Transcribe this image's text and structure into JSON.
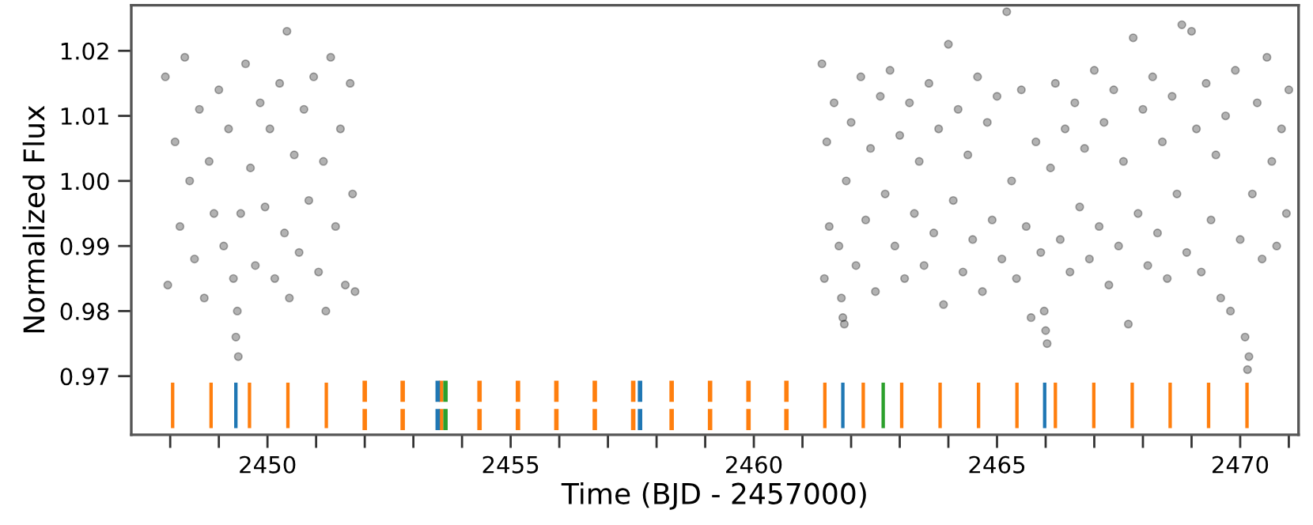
{
  "chart_data": {
    "type": "scatter",
    "xlabel": "Time (BJD - 2457000)",
    "ylabel": "Normalized Flux",
    "xlim": [
      2447.2,
      2471.2
    ],
    "ylim": [
      0.961,
      1.027
    ],
    "xticks": [
      {
        "value": 2448,
        "label": null
      },
      {
        "value": 2449,
        "label": null
      },
      2450,
      {
        "value": 2451,
        "label": null
      },
      {
        "value": 2452,
        "label": null
      },
      {
        "value": 2453,
        "label": null
      },
      {
        "value": 2454,
        "label": null
      },
      2455,
      {
        "value": 2456,
        "label": null
      },
      {
        "value": 2457,
        "label": null
      },
      {
        "value": 2458,
        "label": null
      },
      {
        "value": 2459,
        "label": null
      },
      2460,
      {
        "value": 2461,
        "label": null
      },
      {
        "value": 2462,
        "label": null
      },
      {
        "value": 2463,
        "label": null
      },
      {
        "value": 2464,
        "label": null
      },
      2465,
      {
        "value": 2466,
        "label": null
      },
      {
        "value": 2467,
        "label": null
      },
      {
        "value": 2468,
        "label": null
      },
      {
        "value": 2469,
        "label": null
      },
      2470,
      {
        "value": 2471,
        "label": null
      }
    ],
    "yticks": [
      0.97,
      0.98,
      0.99,
      {
        "value": 1.0,
        "label": "1.00"
      },
      1.01,
      1.02
    ],
    "series": [
      {
        "color": "#000000",
        "marker": "circle",
        "x": [
          2447.9,
          2447.95,
          2448.1,
          2448.2,
          2448.3,
          2448.4,
          2448.5,
          2448.6,
          2448.7,
          2448.8,
          2448.9,
          2449.0,
          2449.1,
          2449.2,
          2449.3,
          2449.35,
          2449.38,
          2449.4,
          2449.45,
          2449.55,
          2449.65,
          2449.75,
          2449.85,
          2449.95,
          2450.05,
          2450.15,
          2450.25,
          2450.35,
          2450.4,
          2450.45,
          2450.55,
          2450.65,
          2450.75,
          2450.85,
          2450.95,
          2451.05,
          2451.15,
          2451.2,
          2451.3,
          2451.4,
          2451.5,
          2451.6,
          2451.7,
          2451.75,
          2451.8,
          2461.4,
          2461.45,
          2461.5,
          2461.55,
          2461.65,
          2461.75,
          2461.8,
          2461.83,
          2461.86,
          2461.9,
          2462.0,
          2462.1,
          2462.2,
          2462.3,
          2462.4,
          2462.5,
          2462.6,
          2462.7,
          2462.8,
          2462.9,
          2463.0,
          2463.1,
          2463.2,
          2463.3,
          2463.4,
          2463.5,
          2463.6,
          2463.7,
          2463.8,
          2463.9,
          2464.0,
          2464.1,
          2464.2,
          2464.3,
          2464.4,
          2464.5,
          2464.6,
          2464.7,
          2464.8,
          2464.9,
          2465.0,
          2465.1,
          2465.2,
          2465.3,
          2465.4,
          2465.5,
          2465.6,
          2465.7,
          2465.8,
          2465.9,
          2465.97,
          2466.0,
          2466.03,
          2466.1,
          2466.2,
          2466.3,
          2466.4,
          2466.5,
          2466.6,
          2466.7,
          2466.8,
          2466.9,
          2467.0,
          2467.1,
          2467.2,
          2467.3,
          2467.4,
          2467.5,
          2467.6,
          2467.7,
          2467.8,
          2467.9,
          2468.0,
          2468.1,
          2468.2,
          2468.3,
          2468.4,
          2468.5,
          2468.6,
          2468.7,
          2468.8,
          2468.9,
          2469.0,
          2469.1,
          2469.2,
          2469.3,
          2469.4,
          2469.5,
          2469.6,
          2469.7,
          2469.8,
          2469.9,
          2470.0,
          2470.1,
          2470.15,
          2470.18,
          2470.25,
          2470.35,
          2470.45,
          2470.55,
          2470.65,
          2470.75,
          2470.85,
          2470.95,
          2471.0
        ],
        "values": [
          1.016,
          0.984,
          1.006,
          0.993,
          1.019,
          1.0,
          0.988,
          1.011,
          0.982,
          1.003,
          0.995,
          1.014,
          0.99,
          1.008,
          0.985,
          0.976,
          0.98,
          0.973,
          0.995,
          1.018,
          1.002,
          0.987,
          1.012,
          0.996,
          1.008,
          0.985,
          1.015,
          0.992,
          1.023,
          0.982,
          1.004,
          0.989,
          1.011,
          0.997,
          1.016,
          0.986,
          1.003,
          0.98,
          1.019,
          0.993,
          1.008,
          0.984,
          1.015,
          0.998,
          0.983,
          1.018,
          0.985,
          1.006,
          0.993,
          1.012,
          0.99,
          0.982,
          0.979,
          0.978,
          1.0,
          1.009,
          0.987,
          1.016,
          0.994,
          1.005,
          0.983,
          1.013,
          0.998,
          1.017,
          0.99,
          1.007,
          0.985,
          1.012,
          0.995,
          1.003,
          0.987,
          1.015,
          0.992,
          1.008,
          0.981,
          1.021,
          0.997,
          1.011,
          0.986,
          1.004,
          0.991,
          1.016,
          0.983,
          1.009,
          0.994,
          1.013,
          0.988,
          1.026,
          1.0,
          0.985,
          1.014,
          0.993,
          0.979,
          1.006,
          0.989,
          0.98,
          0.977,
          0.975,
          1.002,
          1.015,
          0.991,
          1.008,
          0.986,
          1.012,
          0.996,
          1.005,
          0.988,
          1.017,
          0.993,
          1.009,
          0.984,
          1.014,
          0.99,
          1.003,
          0.978,
          1.022,
          0.995,
          1.011,
          0.987,
          1.016,
          0.992,
          1.006,
          0.985,
          1.013,
          0.998,
          1.024,
          0.989,
          1.023,
          1.008,
          0.986,
          1.015,
          0.994,
          1.004,
          0.982,
          1.01,
          0.98,
          1.017,
          0.991,
          0.976,
          0.971,
          0.973,
          0.998,
          1.012,
          0.988,
          1.019,
          1.003,
          0.99,
          1.008,
          0.995,
          1.014
        ]
      },
      {
        "type": "bar",
        "color": "#ff7f0e",
        "line_style": "solid",
        "x": [
          2448.05,
          2448.84,
          2449.63,
          2450.42,
          2451.21
        ],
        "base": [
          0.962,
          0.962,
          0.962,
          0.962,
          0.962
        ],
        "values": [
          0.007,
          0.007,
          0.007,
          0.007,
          0.007
        ]
      },
      {
        "type": "bar",
        "color": "#ff7f0e",
        "line_style": "dashed",
        "x": [
          2452.0,
          2452.78,
          2453.57,
          2454.36,
          2455.15,
          2455.94,
          2456.73,
          2457.52,
          2458.31,
          2459.1,
          2459.89,
          2460.67
        ],
        "base": [
          0.962,
          0.962,
          0.962,
          0.962,
          0.962,
          0.962,
          0.962,
          0.962,
          0.962,
          0.962,
          0.962,
          0.962
        ],
        "values": [
          0.007,
          0.007,
          0.007,
          0.007,
          0.007,
          0.007,
          0.007,
          0.007,
          0.007,
          0.007,
          0.007,
          0.007
        ]
      },
      {
        "type": "bar",
        "color": "#ff7f0e",
        "line_style": "solid",
        "x": [
          2461.46,
          2462.25,
          2463.04,
          2463.83,
          2464.62,
          2465.41,
          2466.2,
          2466.99,
          2467.78,
          2468.56,
          2469.35,
          2470.14
        ],
        "base": [
          0.962,
          0.962,
          0.962,
          0.962,
          0.962,
          0.962,
          0.962,
          0.962,
          0.962,
          0.962,
          0.962,
          0.962
        ],
        "values": [
          0.007,
          0.007,
          0.007,
          0.007,
          0.007,
          0.007,
          0.007,
          0.007,
          0.007,
          0.007,
          0.007,
          0.007
        ]
      },
      {
        "type": "bar",
        "color": "#1f77b4",
        "line_style": "solid",
        "x": [
          2449.35
        ],
        "base": [
          0.962
        ],
        "values": [
          0.007
        ]
      },
      {
        "type": "bar",
        "color": "#1f77b4",
        "line_style": "dashed",
        "x": [
          2453.5,
          2457.66
        ],
        "base": [
          0.962,
          0.962
        ],
        "values": [
          0.007,
          0.007
        ]
      },
      {
        "type": "bar",
        "color": "#1f77b4",
        "line_style": "solid",
        "x": [
          2461.83,
          2465.98
        ],
        "base": [
          0.962,
          0.962
        ],
        "values": [
          0.007,
          0.007
        ]
      },
      {
        "type": "bar",
        "color": "#2ca02c",
        "line_style": "dashed",
        "x": [
          2453.66
        ],
        "base": [
          0.962
        ],
        "values": [
          0.007
        ]
      },
      {
        "type": "bar",
        "color": "#2ca02c",
        "line_style": "solid",
        "x": [
          2462.66
        ],
        "base": [
          0.962
        ],
        "values": [
          0.007
        ]
      }
    ]
  }
}
